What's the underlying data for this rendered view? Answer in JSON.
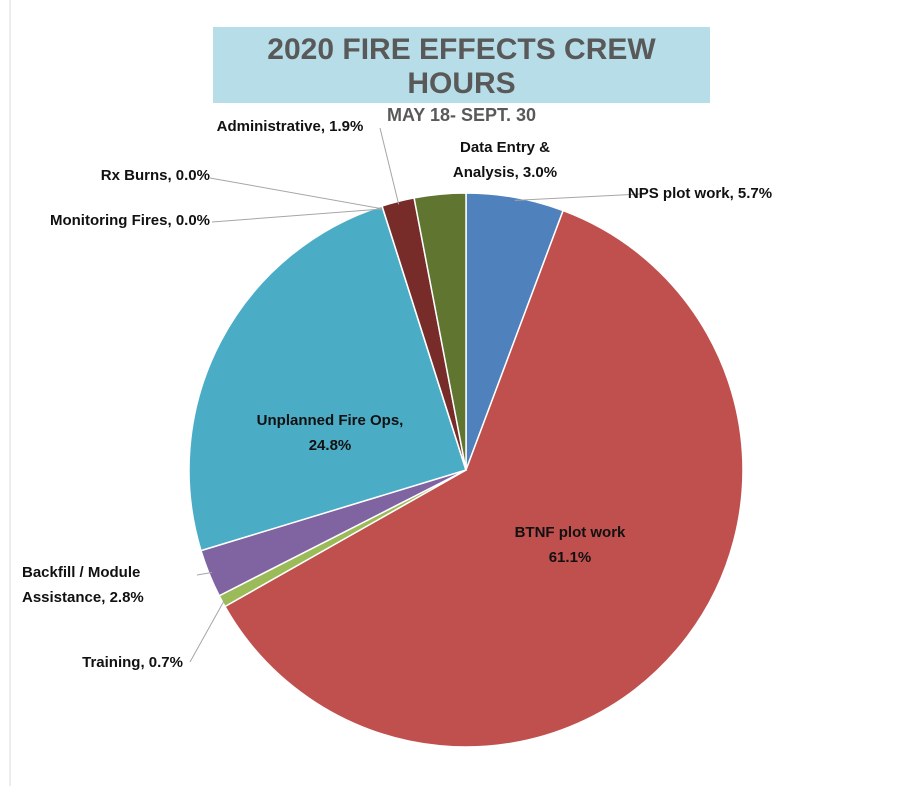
{
  "chart_data": {
    "type": "pie",
    "title": "2020 FIRE EFFECTS CREW HOURS",
    "subtitle": "MAY 18- SEPT. 30",
    "categories": [
      "NPS plot work,",
      "BTNF plot work",
      "Training,",
      "Backfill / Module Assistance,",
      "Unplanned Fire Ops,",
      "Monitoring Fires,",
      "Rx Burns,",
      "Administrative,",
      "Data Entry & Analysis,"
    ],
    "values": [
      5.7,
      61.1,
      0.7,
      2.8,
      24.8,
      0.0,
      0.0,
      1.9,
      3.0
    ],
    "value_labels": [
      "5.7%",
      "61.1%",
      "0.7%",
      "2.8%",
      "24.8%",
      "0.0%",
      "0.0%",
      "1.9%",
      "3.0%"
    ],
    "colors": [
      "#4f81bd",
      "#c0504d",
      "#9bbb59",
      "#8064a2",
      "#4bacc6",
      "#f79646",
      "#2c4d75",
      "#772c2a",
      "#5f7530"
    ]
  }
}
